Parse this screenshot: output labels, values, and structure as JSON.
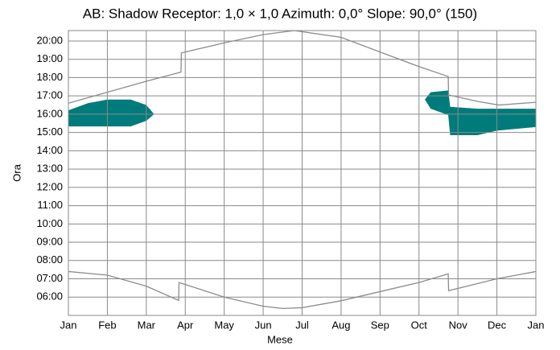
{
  "chart_data": {
    "type": "shadow-calendar",
    "title": "AB: Shadow Receptor: 1,0 × 1,0  Azimuth: 0,0°  Slope: 90,0° (150)",
    "xlabel": "Mese",
    "ylabel": "Ora",
    "xlim": [
      0,
      12
    ],
    "xticks": [
      {
        "value": 0,
        "label": "Jan"
      },
      {
        "value": 1,
        "label": "Feb"
      },
      {
        "value": 2,
        "label": "Mar"
      },
      {
        "value": 3,
        "label": "Apr"
      },
      {
        "value": 4,
        "label": "May"
      },
      {
        "value": 5,
        "label": "Jun"
      },
      {
        "value": 6,
        "label": "Jul"
      },
      {
        "value": 7,
        "label": "Aug"
      },
      {
        "value": 8,
        "label": "Sep"
      },
      {
        "value": 9,
        "label": "Oct"
      },
      {
        "value": 10,
        "label": "Nov"
      },
      {
        "value": 11,
        "label": "Dec"
      },
      {
        "value": 12,
        "label": "Jan"
      }
    ],
    "ylim": [
      5,
      20.57
    ],
    "yticks": [
      {
        "value": 6,
        "label": "06:00"
      },
      {
        "value": 7,
        "label": "07:00"
      },
      {
        "value": 8,
        "label": "08:00"
      },
      {
        "value": 9,
        "label": "09:00"
      },
      {
        "value": 10,
        "label": "10:00"
      },
      {
        "value": 11,
        "label": "11:00"
      },
      {
        "value": 12,
        "label": "12:00"
      },
      {
        "value": 13,
        "label": "13:00"
      },
      {
        "value": 14,
        "label": "14:00"
      },
      {
        "value": 15,
        "label": "15:00"
      },
      {
        "value": 16,
        "label": "16:00"
      },
      {
        "value": 17,
        "label": "17:00"
      },
      {
        "value": 18,
        "label": "18:00"
      },
      {
        "value": 19,
        "label": "19:00"
      },
      {
        "value": 20,
        "label": "20:00"
      }
    ],
    "grid": true,
    "lines": [
      {
        "color": "#8c8c8c",
        "x": [
          0,
          1,
          2,
          2.89,
          2.9,
          4,
          5,
          5.8,
          7,
          8,
          9,
          9.75,
          9.76,
          10.5,
          11.05,
          12
        ],
        "values": [
          16.6,
          17.2,
          17.8,
          18.3,
          19.35,
          19.9,
          20.35,
          20.57,
          20.2,
          19.4,
          18.6,
          18.06,
          17.05,
          16.7,
          16.5,
          16.65
        ]
      },
      {
        "color": "#8c8c8c",
        "x": [
          0,
          1,
          2,
          2.83,
          2.84,
          4,
          5,
          5.5,
          6,
          7,
          8,
          9,
          9.75,
          9.76,
          11,
          12
        ],
        "values": [
          7.4,
          7.2,
          6.6,
          5.82,
          6.8,
          6.0,
          5.5,
          5.38,
          5.42,
          5.8,
          6.3,
          6.8,
          7.27,
          6.35,
          7.0,
          7.4
        ]
      }
    ],
    "shadow_color": "#007b7b",
    "shadows": [
      {
        "x": [
          0,
          0.5,
          1,
          1.6,
          2.0,
          2.2
        ],
        "upper": [
          16.21,
          16.6,
          16.8,
          16.8,
          16.5,
          16.0
        ],
        "lower": [
          15.33,
          15.33,
          15.33,
          15.33,
          15.64,
          16.0
        ]
      },
      {
        "x": [
          9.15,
          9.3,
          9.75,
          9.8,
          10.5,
          11,
          12
        ],
        "upper": [
          16.8,
          17.2,
          17.3,
          16.4,
          16.3,
          16.3,
          16.3
        ],
        "lower": [
          16.8,
          16.3,
          15.95,
          14.85,
          14.85,
          15.1,
          15.3
        ]
      }
    ]
  }
}
